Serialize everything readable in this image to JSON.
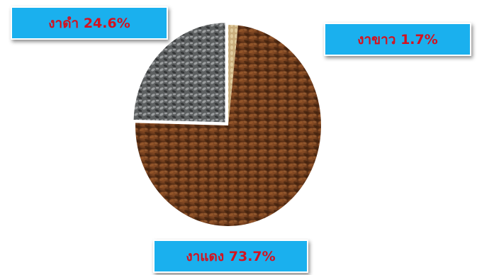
{
  "chart_data": {
    "type": "pie",
    "title": "",
    "slices": [
      {
        "label": "งาดำ",
        "value": 24.6,
        "display": "งาดำ 24.6%",
        "texture": "black-sesame",
        "color": "#6f7272"
      },
      {
        "label": "งาขาว",
        "value": 1.7,
        "display": "งาขาว 1.7%",
        "texture": "white-sesame",
        "color": "#c9ad7c"
      },
      {
        "label": "งาแดง",
        "value": 73.7,
        "display": "งาแดง 73.7%",
        "texture": "red-sesame",
        "color": "#6b3a1c"
      }
    ],
    "label_color": "#d4121f",
    "label_box_color": "#1ab0ee"
  }
}
